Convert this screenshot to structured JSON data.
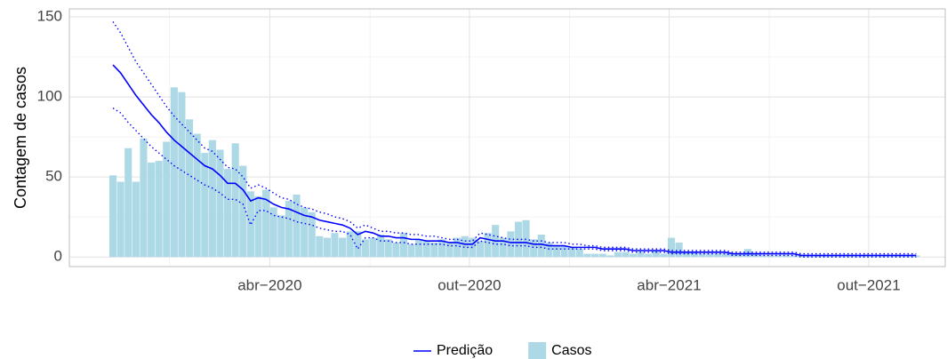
{
  "chart_data": {
    "type": "bar-line",
    "y_label": "Contagem de casos",
    "x": [
      0,
      1,
      2,
      3,
      4,
      5,
      6,
      7,
      8,
      9,
      10,
      11,
      12,
      13,
      14,
      15,
      16,
      17,
      18,
      19,
      20,
      21,
      22,
      23,
      24,
      25,
      26,
      27,
      28,
      29,
      30,
      31,
      32,
      33,
      34,
      35,
      36,
      37,
      38,
      39,
      40,
      41,
      42,
      43,
      44,
      45,
      46,
      47,
      48,
      49,
      50,
      51,
      52,
      53,
      54,
      55,
      56,
      57,
      58,
      59,
      60,
      61,
      62,
      63,
      64,
      65,
      66,
      67,
      68,
      69,
      70,
      71,
      72,
      73,
      74,
      75,
      76,
      77,
      78,
      79,
      80,
      81,
      82,
      83,
      84,
      85,
      86,
      87,
      88,
      89,
      90,
      91,
      92,
      93,
      94,
      95,
      96,
      97,
      98,
      99,
      100,
      101,
      102,
      103,
      104,
      105
    ],
    "xlim": [
      -5.7,
      108.8
    ],
    "xticks": [
      {
        "value": 20.5,
        "label": "abr−2020"
      },
      {
        "value": 46.6,
        "label": "out−2020"
      },
      {
        "value": 72.7,
        "label": "abr−2021"
      },
      {
        "value": 98.8,
        "label": "out−2021"
      }
    ],
    "xminorticks": [
      7.4,
      33.6,
      59.7,
      85.8
    ],
    "ylim": [
      -6,
      155
    ],
    "yticks": [
      0,
      50,
      100,
      150
    ],
    "yminorticks": [
      25,
      75,
      125
    ],
    "grid": true,
    "legend": "bottom",
    "series": [
      {
        "name": "Predição",
        "type": "line",
        "color": "#0000ff",
        "values": [
          120,
          115,
          108,
          101,
          95,
          89,
          84,
          78,
          73,
          69,
          65,
          61,
          57,
          55,
          51,
          46,
          46,
          42,
          35,
          37,
          36,
          33,
          31,
          30,
          28,
          26,
          25,
          23,
          22,
          21,
          20,
          18,
          14,
          16,
          15,
          13,
          13,
          12,
          12,
          11,
          11,
          10,
          10,
          10,
          9,
          9,
          8,
          8,
          12,
          11,
          10,
          10,
          9,
          9,
          9,
          8,
          8,
          7,
          7,
          7,
          6,
          6,
          6,
          6,
          5,
          5,
          5,
          5,
          4,
          4,
          4,
          4,
          4,
          3,
          3,
          3,
          3,
          3,
          3,
          3,
          3,
          2,
          2,
          2,
          2,
          2,
          2,
          2,
          2,
          2,
          1,
          1,
          1,
          1,
          1,
          1,
          1,
          1,
          1,
          1,
          1,
          1,
          1,
          1,
          1,
          1
        ],
        "upper": [
          147,
          140,
          131,
          122,
          115,
          108,
          101,
          94,
          88,
          83,
          78,
          73,
          68,
          66,
          61,
          56,
          55,
          50,
          43,
          45,
          43,
          40,
          37,
          36,
          33,
          31,
          30,
          28,
          27,
          25,
          24,
          22,
          18,
          20,
          18,
          16,
          16,
          15,
          15,
          14,
          14,
          13,
          13,
          12,
          11,
          11,
          10,
          10,
          15,
          14,
          13,
          12,
          11,
          11,
          11,
          10,
          10,
          9,
          9,
          9,
          8,
          8,
          7,
          7,
          6,
          6,
          6,
          6,
          5,
          5,
          5,
          5,
          5,
          4,
          4,
          4,
          4,
          4,
          4,
          4,
          4,
          3,
          3,
          3,
          3,
          3,
          3,
          3,
          3,
          3,
          2,
          2,
          2,
          2,
          2,
          2,
          2,
          2,
          2,
          2,
          2,
          2,
          2,
          2,
          2,
          2
        ],
        "lower": [
          93,
          90,
          84,
          79,
          74,
          69,
          65,
          61,
          57,
          54,
          51,
          48,
          45,
          43,
          40,
          36,
          36,
          33,
          20,
          29,
          29,
          26,
          25,
          24,
          22,
          21,
          20,
          18,
          17,
          16,
          16,
          14,
          5,
          12,
          12,
          10,
          10,
          9,
          9,
          8,
          8,
          8,
          8,
          8,
          7,
          7,
          6,
          6,
          10,
          9,
          8,
          8,
          7,
          7,
          7,
          6,
          6,
          5,
          5,
          5,
          5,
          5,
          5,
          5,
          4,
          4,
          4,
          4,
          3,
          3,
          3,
          3,
          3,
          2,
          2,
          2,
          2,
          2,
          2,
          2,
          2,
          1,
          1,
          1,
          1,
          1,
          1,
          1,
          1,
          1,
          0,
          0,
          0,
          0,
          0,
          0,
          0,
          0,
          0,
          0,
          0,
          0,
          0,
          0,
          0,
          0
        ]
      },
      {
        "name": "Casos",
        "type": "bar",
        "color": "#add8e6",
        "values": [
          51,
          47,
          68,
          47,
          74,
          59,
          60,
          72,
          106,
          103,
          86,
          77,
          65,
          73,
          67,
          55,
          71,
          57,
          41,
          38,
          42,
          31,
          26,
          35,
          39,
          31,
          28,
          13,
          12,
          15,
          12,
          16,
          16,
          11,
          12,
          14,
          11,
          9,
          15,
          8,
          11,
          10,
          9,
          11,
          9,
          12,
          13,
          12,
          10,
          15,
          20,
          12,
          16,
          22,
          23,
          11,
          14,
          9,
          7,
          7,
          6,
          5,
          2,
          2,
          2,
          1,
          3,
          3,
          2,
          3,
          2,
          4,
          2,
          12,
          9,
          3,
          3,
          2,
          2,
          2,
          2,
          2,
          2,
          5,
          2,
          1,
          1,
          1,
          1,
          1,
          1,
          1,
          1,
          1,
          1,
          1,
          1,
          1,
          1,
          1,
          1,
          1,
          1,
          1,
          1,
          1
        ]
      }
    ]
  }
}
